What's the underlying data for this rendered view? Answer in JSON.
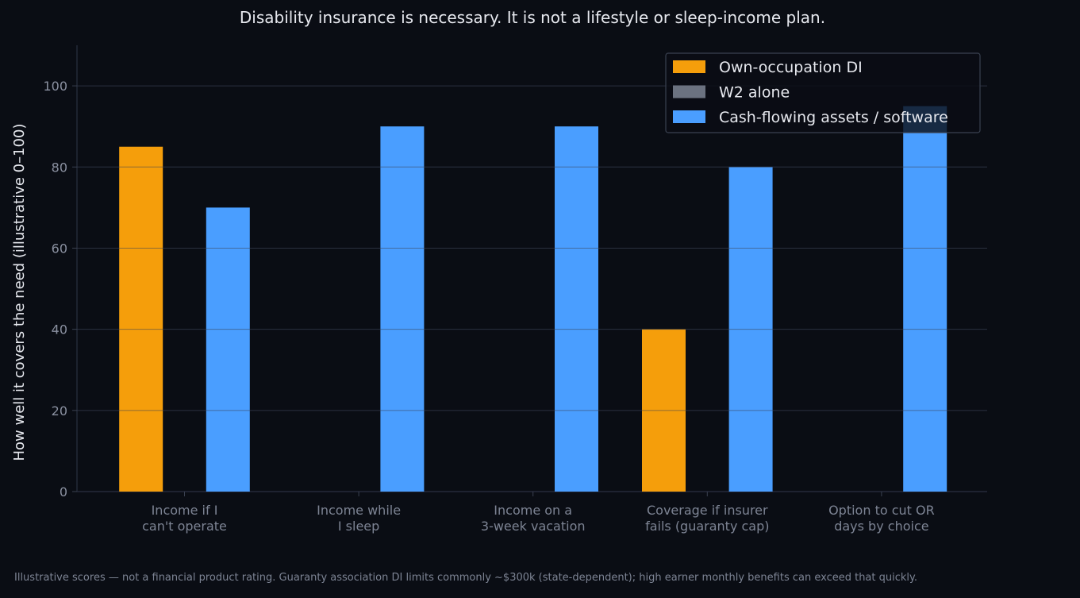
{
  "chart_data": {
    "type": "bar",
    "title": "Disability insurance is necessary. It is not a lifestyle or sleep-income plan.",
    "xlabel": "",
    "ylabel": "How well it covers the need (illustrative 0–100)",
    "categories": [
      [
        "Income if I",
        "can't operate"
      ],
      [
        "Income while",
        "I sleep"
      ],
      [
        "Income on a",
        "3-week vacation"
      ],
      [
        "Coverage if insurer",
        "fails (guaranty cap)"
      ],
      [
        "Option to cut OR",
        "days by choice"
      ]
    ],
    "series": [
      {
        "name": "Own-occupation DI",
        "color": "#f59e0b",
        "values": [
          85,
          0,
          0,
          40,
          0
        ]
      },
      {
        "name": "W2 alone",
        "color": "#6b7280",
        "values": [
          0,
          0,
          0,
          0,
          0
        ]
      },
      {
        "name": "Cash-flowing assets / software",
        "color": "#4a9eff",
        "values": [
          70,
          90,
          90,
          80,
          95
        ]
      }
    ],
    "ylim": [
      0,
      110
    ],
    "yticks": [
      0,
      20,
      40,
      60,
      80,
      100
    ],
    "grid": true,
    "legend": "top-right",
    "footnote": "Illustrative scores — not a financial product rating. Guaranty association DI limits commonly ~$300k (state-dependent); high earner monthly benefits can exceed that quickly."
  }
}
